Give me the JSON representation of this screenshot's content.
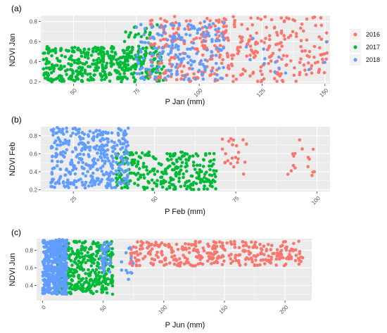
{
  "colors": {
    "2016": "#f8766d",
    "2017": "#00ba38",
    "2018": "#619cff"
  },
  "legend": {
    "placement": "right",
    "entries": [
      "2016",
      "2017",
      "2018"
    ]
  },
  "chart_data": [
    {
      "type": "scatter",
      "label": "(a)",
      "xlabel": "P Jan (mm)",
      "ylabel": "NDVI Jan",
      "xlim": [
        37,
        152
      ],
      "ylim": [
        0.18,
        0.86
      ],
      "xticks": [
        50,
        75,
        100,
        125,
        150
      ],
      "xtick_labels": [
        "50",
        "75",
        "100",
        "125",
        "150"
      ],
      "yticks": [
        0.2,
        0.4,
        0.6,
        0.8
      ],
      "ytick_labels": [
        "0.2",
        "0.4",
        "0.6",
        "0.8"
      ],
      "grid": true,
      "series": [
        {
          "name": "2016",
          "clusters": [
            {
              "x": [
                80,
                151
              ],
              "y": [
                0.2,
                0.85
              ],
              "n": 380,
              "seed": 11
            }
          ]
        },
        {
          "name": "2017",
          "clusters": [
            {
              "x": [
                38,
                86
              ],
              "y": [
                0.2,
                0.55
              ],
              "n": 430,
              "seed": 12
            },
            {
              "x": [
                70,
                86
              ],
              "y": [
                0.4,
                0.78
              ],
              "n": 40,
              "seed": 13
            }
          ]
        },
        {
          "name": "2018",
          "clusters": [
            {
              "x": [
                75,
                110
              ],
              "y": [
                0.22,
                0.8
              ],
              "n": 180,
              "seed": 14
            },
            {
              "x": [
                118,
                152
              ],
              "y": [
                0.28,
                0.65
              ],
              "n": 14,
              "seed": 15
            }
          ]
        }
      ]
    },
    {
      "type": "scatter",
      "label": "(b)",
      "xlabel": "P Feb (mm)",
      "ylabel": "NDVI Feb",
      "xlim": [
        15,
        104
      ],
      "ylim": [
        0.18,
        0.9
      ],
      "xticks": [
        25,
        50,
        75,
        100
      ],
      "xtick_labels": [
        "25",
        "50",
        "75",
        "100"
      ],
      "yticks": [
        0.2,
        0.4,
        0.6,
        0.8
      ],
      "ytick_labels": [
        "0.2",
        "0.4",
        "0.6",
        "0.8"
      ],
      "grid": true,
      "series": [
        {
          "name": "2016",
          "clusters": [
            {
              "x": [
                70,
                79
              ],
              "y": [
                0.35,
                0.8
              ],
              "n": 22,
              "seed": 21
            },
            {
              "x": [
                91,
                101
              ],
              "y": [
                0.35,
                0.8
              ],
              "n": 16,
              "seed": 22
            }
          ]
        },
        {
          "name": "2017",
          "clusters": [
            {
              "x": [
                38,
                69
              ],
              "y": [
                0.2,
                0.62
              ],
              "n": 280,
              "seed": 23
            }
          ]
        },
        {
          "name": "2018",
          "clusters": [
            {
              "x": [
                18,
                42
              ],
              "y": [
                0.22,
                0.89
              ],
              "n": 380,
              "seed": 24
            }
          ]
        }
      ]
    },
    {
      "type": "scatter",
      "label": "(c)",
      "xlabel": "P Jun (mm)",
      "ylabel": "NDVI Jun",
      "xlim": [
        -5,
        222
      ],
      "ylim": [
        0.23,
        0.93
      ],
      "xticks": [
        0,
        50,
        100,
        150,
        200
      ],
      "xtick_labels": [
        "0",
        "50",
        "100",
        "150",
        "200"
      ],
      "yticks": [
        0.4,
        0.6,
        0.8
      ],
      "ytick_labels": [
        "0.4",
        "0.6",
        "0.8"
      ],
      "grid": true,
      "series": [
        {
          "name": "2016",
          "clusters": [
            {
              "x": [
                72,
                215
              ],
              "y": [
                0.62,
                0.9
              ],
              "n": 320,
              "seed": 31
            }
          ]
        },
        {
          "name": "2017",
          "clusters": [
            {
              "x": [
                12,
                58
              ],
              "y": [
                0.3,
                0.9
              ],
              "n": 380,
              "seed": 32
            }
          ]
        },
        {
          "name": "2018",
          "clusters": [
            {
              "x": [
                0,
                20
              ],
              "y": [
                0.3,
                0.92
              ],
              "n": 460,
              "seed": 33
            },
            {
              "x": [
                48,
                56
              ],
              "y": [
                0.55,
                0.9
              ],
              "n": 40,
              "seed": 34
            },
            {
              "x": [
                65,
                75
              ],
              "y": [
                0.45,
                0.88
              ],
              "n": 12,
              "seed": 35
            }
          ]
        }
      ]
    }
  ]
}
